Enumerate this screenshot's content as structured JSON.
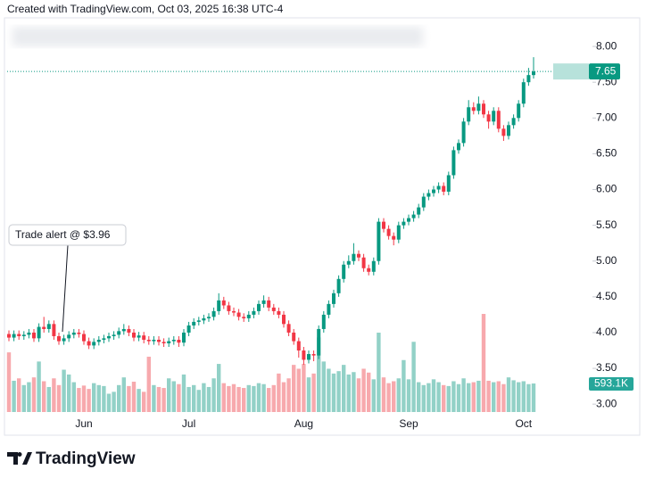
{
  "page": {
    "caption": "Created with TradingView.com, Oct 03, 2025 16:38 UTC-4",
    "brand": "TradingView"
  },
  "chart_data": {
    "type": "candlestick",
    "annotation": "Trade alert @ $3.96",
    "categories": [
      null,
      null,
      null,
      null,
      null,
      null,
      null,
      null,
      null,
      null,
      null,
      null,
      null,
      null,
      null,
      "Jun",
      null,
      null,
      null,
      null,
      null,
      null,
      null,
      null,
      null,
      null,
      null,
      null,
      null,
      null,
      null,
      null,
      null,
      null,
      null,
      null,
      "Jul",
      null,
      null,
      null,
      null,
      null,
      null,
      null,
      null,
      null,
      null,
      null,
      null,
      null,
      null,
      null,
      null,
      null,
      null,
      null,
      null,
      null,
      null,
      "Aug",
      null,
      null,
      null,
      null,
      null,
      null,
      null,
      null,
      null,
      null,
      null,
      null,
      null,
      null,
      null,
      null,
      null,
      null,
      null,
      null,
      "Sep",
      null,
      null,
      null,
      null,
      null,
      null,
      null,
      null,
      null,
      null,
      null,
      null,
      null,
      null,
      null,
      null,
      null,
      null,
      null,
      null,
      null,
      null,
      "Oct",
      null,
      null
    ],
    "open": [
      3.98,
      3.93,
      3.98,
      3.95,
      3.97,
      4.0,
      3.92,
      4.08,
      4.05,
      4.12,
      3.95,
      3.88,
      3.92,
      3.97,
      4.0,
      3.98,
      3.88,
      3.82,
      3.87,
      3.9,
      3.92,
      3.95,
      3.97,
      4.02,
      4.05,
      4.0,
      3.93,
      3.96,
      3.9,
      3.88,
      3.9,
      3.87,
      3.85,
      3.88,
      3.9,
      3.86,
      4.0,
      4.1,
      4.15,
      4.17,
      4.2,
      4.22,
      4.3,
      4.45,
      4.38,
      4.3,
      4.28,
      4.22,
      4.2,
      4.25,
      4.3,
      4.4,
      4.45,
      4.35,
      4.3,
      4.25,
      4.12,
      4.0,
      3.88,
      3.75,
      3.62,
      3.7,
      3.68,
      4.05,
      4.25,
      4.4,
      4.55,
      4.75,
      4.95,
      5.0,
      5.1,
      5.05,
      4.9,
      4.85,
      5.0,
      5.55,
      5.45,
      5.35,
      5.3,
      5.5,
      5.55,
      5.6,
      5.65,
      5.75,
      5.9,
      5.95,
      6.0,
      6.05,
      5.97,
      6.2,
      6.55,
      6.65,
      6.95,
      7.15,
      7.1,
      7.2,
      7.05,
      6.95,
      7.1,
      6.85,
      6.75,
      6.9,
      7.0,
      7.2,
      7.5,
      7.6
    ],
    "high": [
      4.03,
      4.03,
      4.03,
      4.02,
      4.05,
      4.05,
      4.13,
      4.22,
      4.17,
      4.17,
      4.0,
      3.97,
      4.02,
      4.05,
      4.05,
      4.03,
      3.93,
      3.92,
      3.95,
      3.97,
      4.0,
      4.02,
      4.07,
      4.12,
      4.1,
      4.05,
      4.01,
      4.01,
      3.95,
      3.95,
      3.95,
      3.92,
      3.93,
      3.95,
      3.95,
      4.05,
      4.15,
      4.2,
      4.22,
      4.25,
      4.27,
      4.35,
      4.55,
      4.5,
      4.43,
      4.35,
      4.33,
      4.27,
      4.3,
      4.35,
      4.45,
      4.52,
      4.5,
      4.4,
      4.35,
      4.3,
      4.17,
      4.05,
      3.93,
      3.8,
      3.75,
      3.75,
      4.1,
      4.3,
      4.45,
      4.6,
      4.8,
      5.0,
      5.08,
      5.25,
      5.15,
      5.1,
      4.95,
      5.05,
      5.6,
      5.6,
      5.5,
      5.4,
      5.55,
      5.6,
      5.65,
      5.7,
      5.8,
      5.95,
      6.0,
      6.05,
      6.1,
      6.1,
      6.25,
      6.6,
      6.7,
      7.0,
      7.25,
      7.22,
      7.3,
      7.25,
      7.1,
      7.15,
      7.15,
      6.9,
      6.95,
      7.05,
      7.25,
      7.55,
      7.7,
      7.85
    ],
    "low": [
      3.88,
      3.88,
      3.9,
      3.9,
      3.92,
      3.87,
      3.87,
      4.0,
      4.0,
      3.9,
      3.83,
      3.83,
      3.87,
      3.92,
      3.93,
      3.83,
      3.77,
      3.77,
      3.82,
      3.85,
      3.87,
      3.9,
      3.92,
      3.97,
      3.95,
      3.88,
      3.88,
      3.85,
      3.83,
      3.83,
      3.82,
      3.8,
      3.8,
      3.83,
      3.8,
      3.81,
      3.95,
      4.05,
      4.1,
      4.12,
      4.15,
      4.17,
      4.25,
      4.33,
      4.25,
      4.23,
      4.17,
      4.15,
      4.15,
      4.2,
      4.25,
      4.35,
      4.3,
      4.25,
      4.2,
      4.07,
      3.95,
      3.83,
      3.65,
      3.55,
      3.57,
      3.6,
      3.63,
      4.0,
      4.2,
      4.35,
      4.5,
      4.7,
      4.9,
      4.95,
      5.0,
      4.85,
      4.8,
      4.8,
      4.95,
      5.4,
      5.3,
      5.22,
      5.25,
      5.45,
      5.5,
      5.55,
      5.6,
      5.7,
      5.85,
      5.9,
      5.95,
      5.92,
      5.92,
      6.15,
      6.5,
      6.6,
      6.9,
      7.05,
      7.05,
      7.0,
      6.85,
      6.9,
      6.8,
      6.68,
      6.7,
      6.85,
      6.95,
      7.15,
      7.45,
      7.55
    ],
    "close": [
      3.93,
      3.98,
      3.95,
      3.97,
      4.0,
      3.92,
      4.08,
      4.05,
      4.12,
      3.95,
      3.88,
      3.92,
      3.97,
      4.0,
      3.98,
      3.88,
      3.82,
      3.87,
      3.9,
      3.92,
      3.95,
      3.97,
      4.02,
      4.05,
      4.0,
      3.93,
      3.96,
      3.9,
      3.88,
      3.9,
      3.87,
      3.85,
      3.88,
      3.9,
      3.86,
      4.0,
      4.1,
      4.15,
      4.17,
      4.2,
      4.22,
      4.3,
      4.45,
      4.38,
      4.3,
      4.28,
      4.22,
      4.2,
      4.25,
      4.3,
      4.4,
      4.45,
      4.35,
      4.3,
      4.25,
      4.12,
      4.0,
      3.88,
      3.75,
      3.62,
      3.7,
      3.68,
      4.05,
      4.25,
      4.4,
      4.55,
      4.75,
      4.95,
      5.0,
      5.1,
      5.05,
      4.9,
      4.85,
      5.0,
      5.55,
      5.45,
      5.35,
      5.3,
      5.5,
      5.55,
      5.6,
      5.65,
      5.75,
      5.9,
      5.95,
      6.0,
      6.05,
      5.97,
      6.2,
      6.55,
      6.65,
      6.95,
      7.15,
      7.1,
      7.2,
      7.05,
      6.95,
      7.1,
      6.85,
      6.75,
      6.9,
      7.0,
      7.2,
      7.5,
      7.6,
      7.65
    ],
    "volume": [
      1240000,
      650000,
      700000,
      560000,
      620000,
      720000,
      1050000,
      640000,
      520000,
      700000,
      560000,
      880000,
      780000,
      620000,
      500000,
      550000,
      480000,
      600000,
      560000,
      540000,
      380000,
      420000,
      560000,
      720000,
      540000,
      630000,
      480000,
      420000,
      1150000,
      560000,
      520000,
      500000,
      700000,
      640000,
      580000,
      780000,
      520000,
      560000,
      460000,
      600000,
      520000,
      700000,
      1000000,
      600000,
      540000,
      580000,
      520000,
      500000,
      560000,
      540000,
      600000,
      580000,
      500000,
      560000,
      800000,
      620000,
      700000,
      980000,
      900000,
      1000000,
      720000,
      800000,
      1550000,
      1050000,
      900000,
      800000,
      850000,
      980000,
      780000,
      830000,
      700000,
      900000,
      820000,
      680000,
      1650000,
      720000,
      600000,
      640000,
      700000,
      1080000,
      680000,
      1460000,
      620000,
      560000,
      600000,
      680000,
      620000,
      560000,
      540000,
      640000,
      580000,
      700000,
      600000,
      620000,
      650000,
      2040000,
      650000,
      620000,
      640000,
      580000,
      720000,
      660000,
      620000,
      640000,
      580000,
      593100
    ],
    "volume_label": "593.1K",
    "ylim": [
      2.89,
      8.4
    ],
    "yticks": [
      {
        "value": 3,
        "label": "3.00"
      },
      {
        "value": 3.5,
        "label": "3.50"
      },
      {
        "value": 4,
        "label": "4.00"
      },
      {
        "value": 4.5,
        "label": "4.50"
      },
      {
        "value": 5,
        "label": "5.00"
      },
      {
        "value": 5.5,
        "label": "5.50"
      },
      {
        "value": 6,
        "label": "6.00"
      },
      {
        "value": 6.5,
        "label": "6.50"
      },
      {
        "value": 7,
        "label": "7.00"
      },
      {
        "value": 7.5,
        "label": "7.50"
      },
      {
        "value": 8,
        "label": "8.00"
      }
    ],
    "up_color": "#089981",
    "down_color": "#f23645",
    "volume_up_color": "#92d1c7",
    "volume_down_color": "#f7a9ad"
  }
}
